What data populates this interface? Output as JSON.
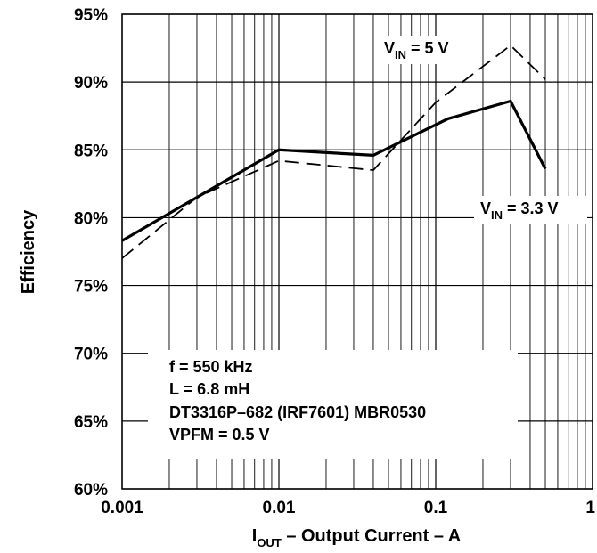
{
  "chart_data": {
    "type": "line",
    "xscale": "log",
    "xlim": [
      0.001,
      1
    ],
    "ylim": [
      60,
      95
    ],
    "grid": true,
    "x_ticks": [
      "0.001",
      "0.01",
      "0.1",
      "1"
    ],
    "y_ticks": [
      "60%",
      "65%",
      "70%",
      "75%",
      "80%",
      "85%",
      "90%",
      "95%"
    ],
    "xlabel": {
      "main": "I",
      "sub": "OUT",
      "rest": " – Output Current – A"
    },
    "ylabel": "Efficiency",
    "series": [
      {
        "name": "VIN = 3.3 V",
        "label": {
          "prefix": "V",
          "sub": "IN",
          "suffix": " = 3.3 V"
        },
        "style": "solid",
        "color": "#000000",
        "x": [
          0.001,
          0.003,
          0.01,
          0.04,
          0.12,
          0.3,
          0.5
        ],
        "y": [
          78.3,
          81.5,
          85.0,
          84.6,
          87.3,
          88.6,
          83.6
        ]
      },
      {
        "name": "VIN = 5 V",
        "label": {
          "prefix": "V",
          "sub": "IN",
          "suffix": " = 5 V"
        },
        "style": "dashed",
        "color": "#000000",
        "x": [
          0.001,
          0.003,
          0.01,
          0.04,
          0.1,
          0.3,
          0.5
        ],
        "y": [
          77.0,
          81.5,
          84.2,
          83.5,
          88.5,
          92.7,
          90.2
        ]
      }
    ],
    "annotation_lines": [
      "f = 550 kHz",
      "L = 6.8 mH",
      "DT3316P–682 (IRF7601) MBR0530",
      "VPFM = 0.5 V"
    ]
  }
}
